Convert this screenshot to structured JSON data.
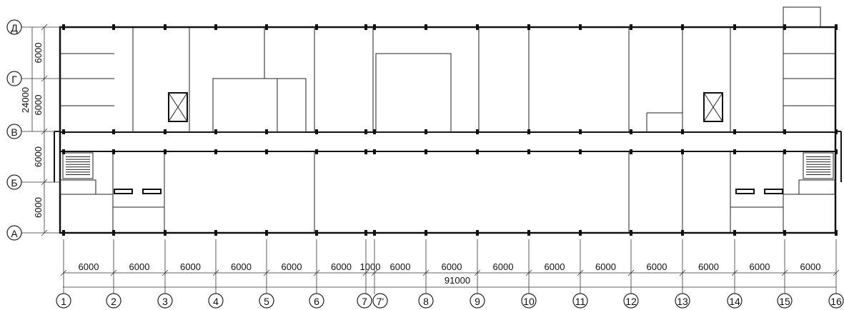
{
  "plan": {
    "row_axes": [
      "Д",
      "Г",
      "В",
      "Б",
      "А"
    ],
    "row_dims": [
      "6000",
      "6000",
      "6000",
      "6000"
    ],
    "overall_height": "24000",
    "col_axes": [
      "1",
      "2",
      "3",
      "4",
      "5",
      "6",
      "7",
      "7'",
      "8",
      "9",
      "10",
      "11",
      "12",
      "13",
      "14",
      "15",
      "16"
    ],
    "span_dims": [
      "6000",
      "6000",
      "6000",
      "6000",
      "6000",
      "6000",
      "1000",
      "6000",
      "6000",
      "6000",
      "6000",
      "6000",
      "6000",
      "6000",
      "6000",
      "6000"
    ],
    "overall_length": "91000"
  }
}
